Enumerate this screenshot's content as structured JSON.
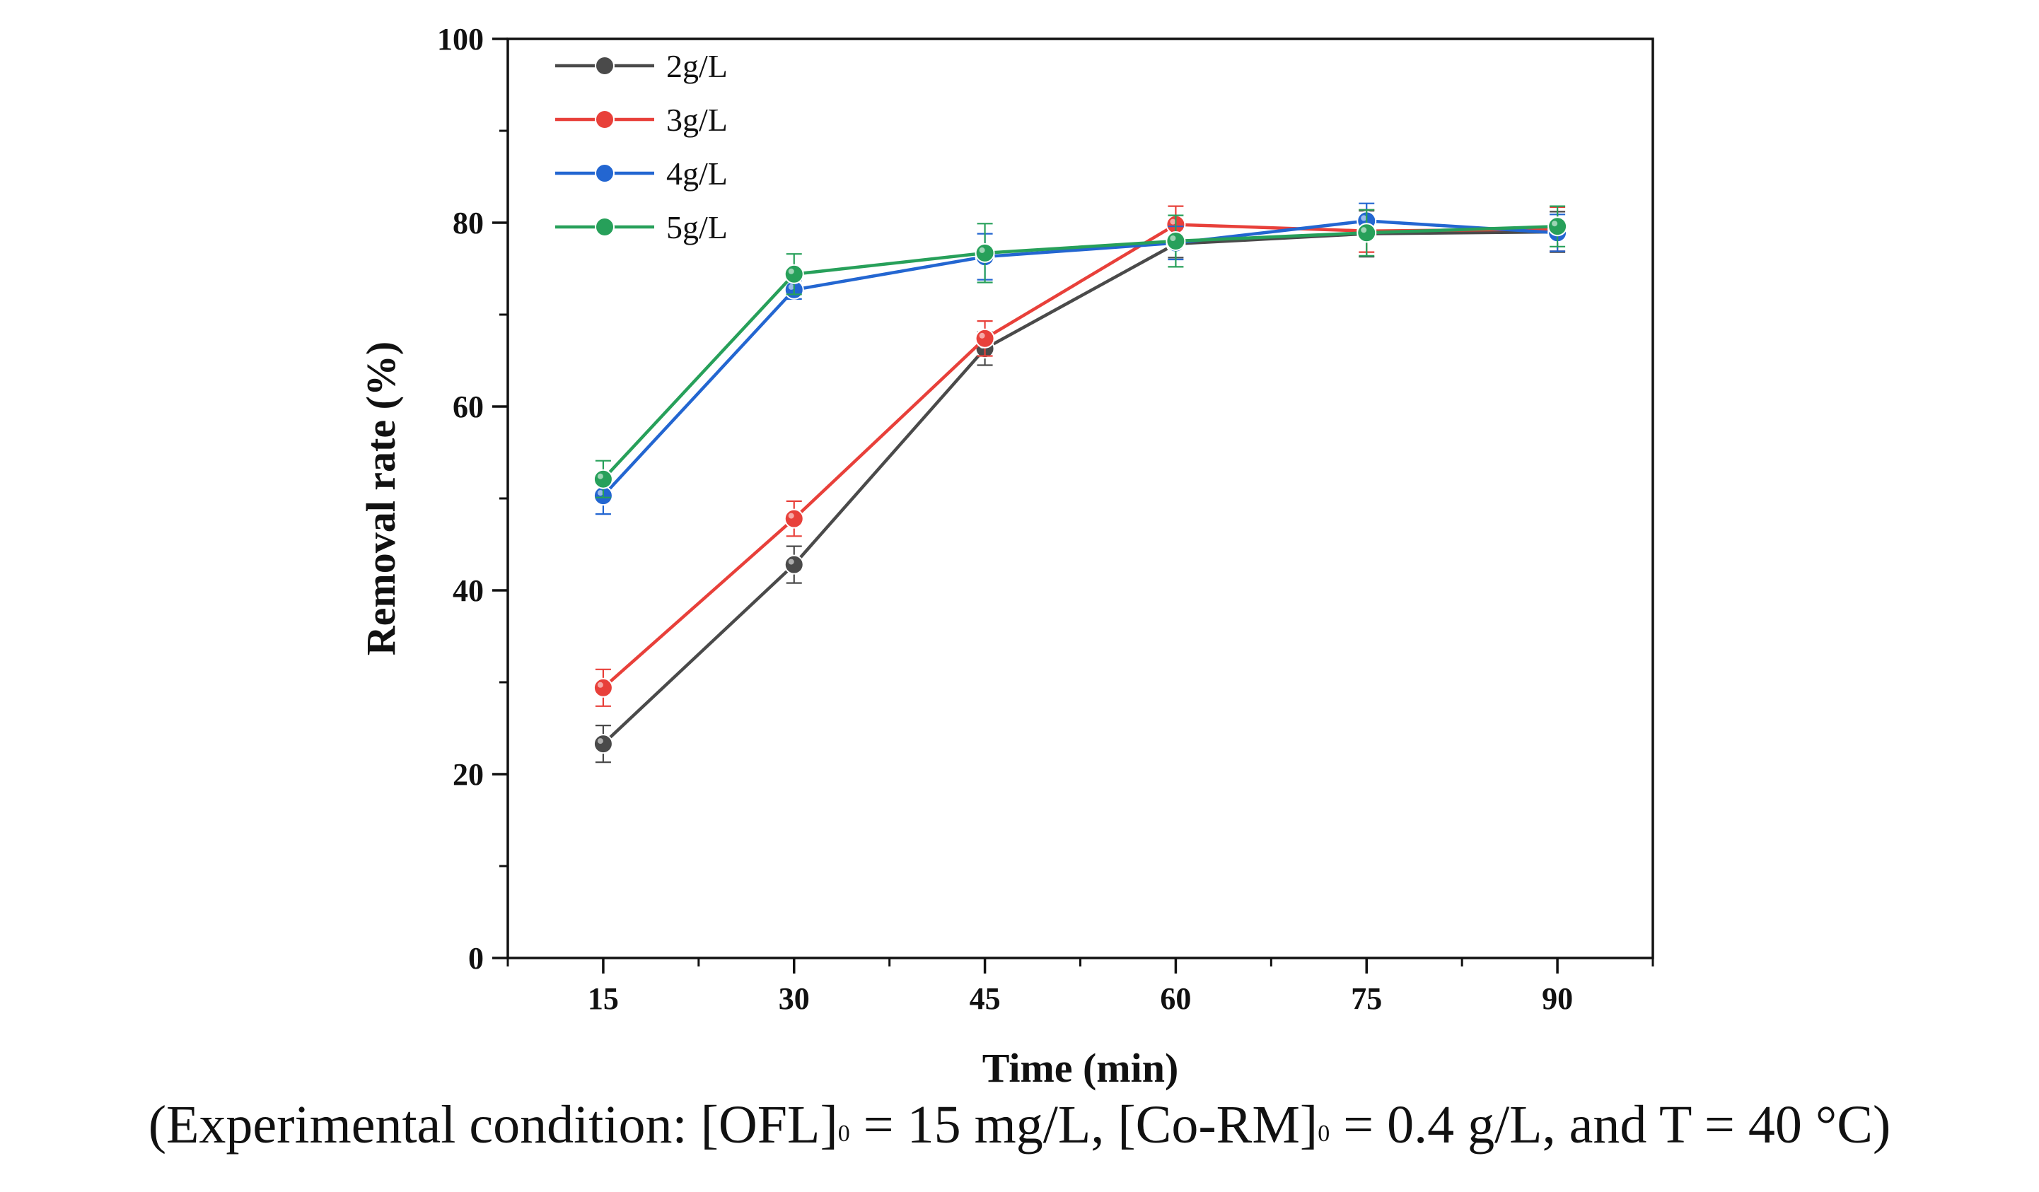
{
  "chart_data": {
    "type": "line",
    "title": "",
    "xlabel": "Time (min)",
    "ylabel": "Removal rate (%)",
    "x": [
      15,
      30,
      45,
      60,
      75,
      90
    ],
    "xlim": [
      7.5,
      97.5
    ],
    "ylim": [
      0,
      100
    ],
    "x_ticks": [
      15,
      30,
      45,
      60,
      75,
      90
    ],
    "y_ticks": [
      0,
      20,
      40,
      60,
      80,
      100
    ],
    "grid": false,
    "legend_position": "top-left",
    "error_bars": true,
    "series": [
      {
        "name": "2g/L",
        "color": "#4a4a4a",
        "values": [
          23.3,
          42.8,
          66.3,
          77.7,
          78.8,
          79.0
        ],
        "errors": [
          2.0,
          2.0,
          1.8,
          1.5,
          2.5,
          2.2
        ]
      },
      {
        "name": "3g/L",
        "color": "#e8403a",
        "values": [
          29.4,
          47.8,
          67.4,
          79.8,
          79.1,
          79.3
        ],
        "errors": [
          2.0,
          1.9,
          1.9,
          2.0,
          2.3,
          2.4
        ]
      },
      {
        "name": "4g/L",
        "color": "#2366d1",
        "values": [
          50.3,
          72.7,
          76.3,
          77.8,
          80.2,
          78.9
        ],
        "errors": [
          2.0,
          1.0,
          2.5,
          1.8,
          1.9,
          2.0
        ]
      },
      {
        "name": "5g/L",
        "color": "#27a05a",
        "values": [
          52.1,
          74.4,
          76.7,
          78.0,
          78.9,
          79.6
        ],
        "errors": [
          2.0,
          2.2,
          3.2,
          2.8,
          2.5,
          2.2
        ]
      }
    ]
  },
  "caption": {
    "prefix": "(Experimental condition: [OFL]",
    "sub1": "0",
    "middle": " = 15 mg/L, [Co-RM]",
    "sub2": "0",
    "suffix": " = 0.4 g/L, and T = 40 °C)"
  }
}
